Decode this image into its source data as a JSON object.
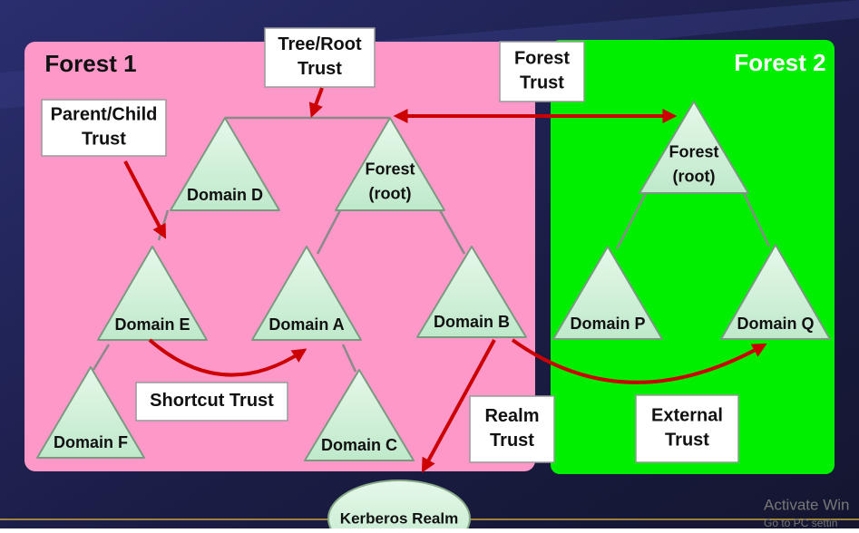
{
  "forests": [
    {
      "label": "Forest 1"
    },
    {
      "label": "Forest 2"
    }
  ],
  "nodes": [
    {
      "lines": [
        "Domain D"
      ]
    },
    {
      "lines": [
        "Forest",
        "(root)"
      ]
    },
    {
      "lines": [
        "Domain E"
      ]
    },
    {
      "lines": [
        "Domain A"
      ]
    },
    {
      "lines": [
        "Domain B"
      ]
    },
    {
      "lines": [
        "Domain F"
      ]
    },
    {
      "lines": [
        "Domain C"
      ]
    },
    {
      "lines": [
        "Forest",
        "(root)"
      ]
    },
    {
      "lines": [
        "Domain P"
      ]
    },
    {
      "lines": [
        "Domain Q"
      ]
    }
  ],
  "trusts": [
    {
      "lines": [
        "Tree/Root",
        "Trust"
      ]
    },
    {
      "lines": [
        "Forest",
        "Trust"
      ]
    },
    {
      "lines": [
        "Parent/Child",
        "Trust"
      ]
    },
    {
      "lines": [
        "Shortcut Trust"
      ]
    },
    {
      "lines": [
        "Realm",
        "Trust"
      ]
    },
    {
      "lines": [
        "External",
        "Trust"
      ]
    }
  ],
  "realm": {
    "label": "Kerberos Realm"
  },
  "watermark": {
    "title": "Activate Win",
    "subtitle": "Go to PC settin"
  }
}
